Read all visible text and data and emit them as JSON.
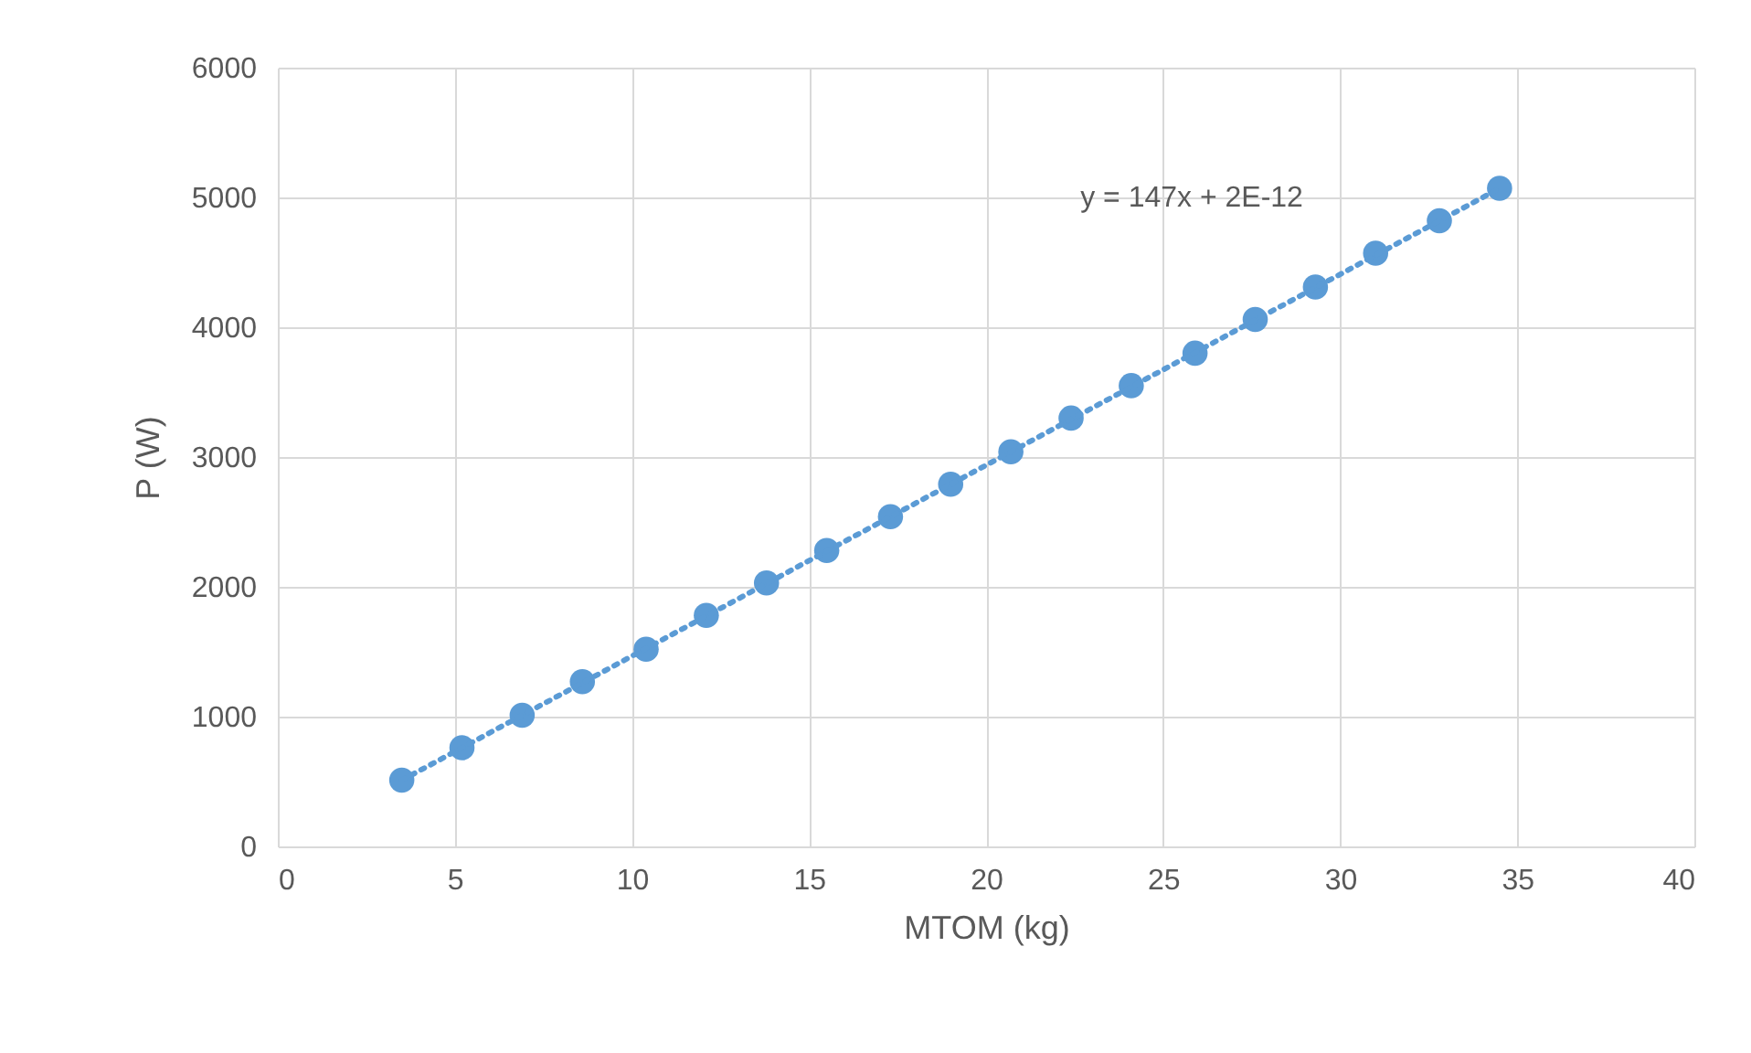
{
  "chart_data": {
    "type": "scatter",
    "xlabel": "MTOM (kg)",
    "ylabel": "P (W)",
    "xlim": [
      0,
      40
    ],
    "xticks": [
      0,
      5,
      10,
      15,
      20,
      25,
      30,
      35,
      40
    ],
    "ylim": [
      0,
      6000
    ],
    "yticks": [
      0,
      1000,
      2000,
      3000,
      4000,
      5000,
      6000
    ],
    "grid": true,
    "series": [
      {
        "marker": "circle",
        "color": "#5b9bd5",
        "x": [
          3.5,
          5.2,
          6.9,
          8.6,
          10.4,
          12.1,
          13.8,
          15.5,
          17.3,
          19.0,
          20.7,
          22.4,
          24.1,
          25.9,
          27.6,
          29.3,
          31.0,
          32.8,
          34.5
        ],
        "values": [
          510,
          760,
          1010,
          1270,
          1520,
          1780,
          2030,
          2280,
          2540,
          2790,
          3040,
          3300,
          3550,
          3800,
          4060,
          4310,
          4570,
          4820,
          5070
        ]
      },
      {
        "type": "line",
        "color": "#5b9bd5",
        "line_style": "dotted",
        "x": [
          3.5,
          34.5
        ],
        "values": [
          510,
          5070
        ]
      }
    ],
    "annotations": [
      "y = 147x + 2E-12"
    ]
  }
}
